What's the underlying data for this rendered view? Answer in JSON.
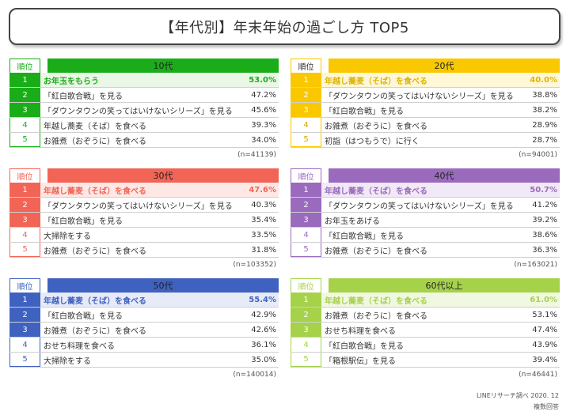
{
  "title": "【年代別】年末年始の過ごし方 TOP5",
  "rank_header": "順位",
  "footer_source": "LINEリサーチ調べ 2020. 12",
  "footer_note": "複数回答",
  "chart_data": [
    {
      "type": "table",
      "title": "10代",
      "color": "#1aad19",
      "light": "#eaf7e6",
      "n": "(n=41139)",
      "rows": [
        {
          "rank": "1",
          "label": "お年玉をもらう",
          "value": "53.0%"
        },
        {
          "rank": "2",
          "label": "「紅白歌合戦」を見る",
          "value": "47.2%"
        },
        {
          "rank": "3",
          "label": "「ダウンタウンの笑ってはいけないシリーズ」を見る",
          "value": "45.6%"
        },
        {
          "rank": "4",
          "label": "年越し蕎麦（そば）を食べる",
          "value": "39.3%"
        },
        {
          "rank": "5",
          "label": "お雑煮（おぞうに）を食べる",
          "value": "34.0%"
        }
      ]
    },
    {
      "type": "table",
      "title": "20代",
      "color": "#f9c800",
      "light": "#fef7d8",
      "n": "(n=94001)",
      "rows": [
        {
          "rank": "1",
          "label": "年越し蕎麦（そば）を食べる",
          "value": "40.0%"
        },
        {
          "rank": "2",
          "label": "「ダウンタウンの笑ってはいけないシリーズ」を見る",
          "value": "38.8%"
        },
        {
          "rank": "3",
          "label": "「紅白歌合戦」を見る",
          "value": "38.2%"
        },
        {
          "rank": "4",
          "label": "お雑煮（おぞうに）を食べる",
          "value": "28.9%"
        },
        {
          "rank": "5",
          "label": "初詣（はつもうで）に行く",
          "value": "28.7%"
        }
      ]
    },
    {
      "type": "table",
      "title": "30代",
      "color": "#f26456",
      "light": "#fde8e5",
      "n": "(n=103352)",
      "rows": [
        {
          "rank": "1",
          "label": "年越し蕎麦（そば）を食べる",
          "value": "47.6%"
        },
        {
          "rank": "2",
          "label": "「ダウンタウンの笑ってはいけないシリーズ」を見る",
          "value": "40.3%"
        },
        {
          "rank": "3",
          "label": "「紅白歌合戦」を見る",
          "value": "35.4%"
        },
        {
          "rank": "4",
          "label": "大掃除をする",
          "value": "33.5%"
        },
        {
          "rank": "5",
          "label": "お雑煮（おぞうに）を食べる",
          "value": "31.8%"
        }
      ]
    },
    {
      "type": "table",
      "title": "40代",
      "color": "#9a6bbd",
      "light": "#f1e9f6",
      "n": "(n=163021)",
      "rows": [
        {
          "rank": "1",
          "label": "年越し蕎麦（そば）を食べる",
          "value": "50.7%"
        },
        {
          "rank": "2",
          "label": "「ダウンタウンの笑ってはいけないシリーズ」を見る",
          "value": "41.2%"
        },
        {
          "rank": "3",
          "label": "お年玉をあげる",
          "value": "39.2%"
        },
        {
          "rank": "4",
          "label": "「紅白歌合戦」を見る",
          "value": "38.6%"
        },
        {
          "rank": "5",
          "label": "お雑煮（おぞうに）を食べる",
          "value": "36.3%"
        }
      ]
    },
    {
      "type": "table",
      "title": "50代",
      "color": "#3f62c0",
      "light": "#e6ebf7",
      "n": "(n=140014)",
      "rows": [
        {
          "rank": "1",
          "label": "年越し蕎麦（そば）を食べる",
          "value": "55.4%"
        },
        {
          "rank": "2",
          "label": "「紅白歌合戦」を見る",
          "value": "42.9%"
        },
        {
          "rank": "3",
          "label": "お雑煮（おぞうに）を食べる",
          "value": "42.6%"
        },
        {
          "rank": "4",
          "label": "おせち料理を食べる",
          "value": "36.1%"
        },
        {
          "rank": "5",
          "label": "大掃除をする",
          "value": "35.0%"
        }
      ]
    },
    {
      "type": "table",
      "title": "60代以上",
      "color": "#a6d24a",
      "light": "#f1f8e2",
      "n": "(n=46441)",
      "rows": [
        {
          "rank": "1",
          "label": "年越し蕎麦（そば）を食べる",
          "value": "61.0%"
        },
        {
          "rank": "2",
          "label": "お雑煮（おぞうに）を食べる",
          "value": "53.1%"
        },
        {
          "rank": "3",
          "label": "おせち料理を食べる",
          "value": "47.4%"
        },
        {
          "rank": "4",
          "label": "「紅白歌合戦」を見る",
          "value": "43.9%"
        },
        {
          "rank": "5",
          "label": "「箱根駅伝」を見る",
          "value": "39.4%"
        }
      ]
    }
  ]
}
